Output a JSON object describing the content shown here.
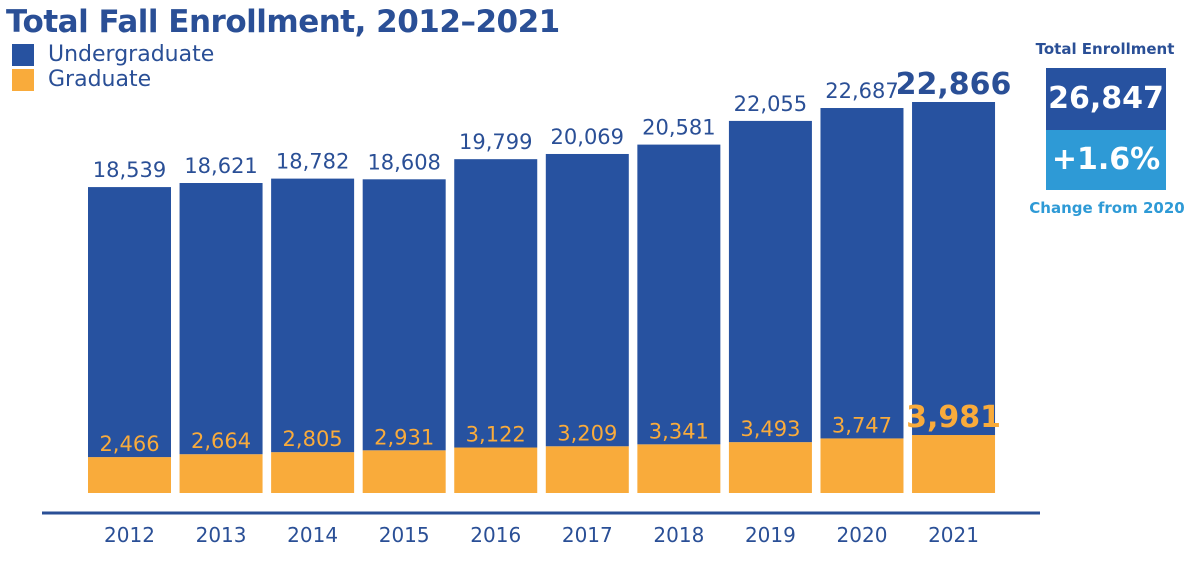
{
  "chart_data": {
    "type": "bar",
    "stacked": true,
    "title": "Total Fall Enrollment, 2012–2021",
    "categories": [
      "2012",
      "2013",
      "2014",
      "2015",
      "2016",
      "2017",
      "2018",
      "2019",
      "2020",
      "2021"
    ],
    "series": [
      {
        "name": "Undergraduate",
        "color": "#2752a0",
        "values": [
          18539,
          18621,
          18782,
          18608,
          19799,
          20069,
          20581,
          22055,
          22687,
          22866
        ]
      },
      {
        "name": "Graduate",
        "color": "#f9ab3b",
        "values": [
          2466,
          2664,
          2805,
          2931,
          3122,
          3209,
          3341,
          3493,
          3747,
          3981
        ]
      }
    ],
    "value_labels": {
      "Undergraduate": [
        "18,539",
        "18,621",
        "18,782",
        "18,608",
        "19,799",
        "20,069",
        "20,581",
        "22,055",
        "22,687",
        "22,866"
      ],
      "Graduate": [
        "2,466",
        "2,664",
        "2,805",
        "2,931",
        "3,122",
        "3,209",
        "3,341",
        "3,493",
        "3,747",
        "3,981"
      ]
    },
    "xlabel": "",
    "ylabel": "",
    "ylim": [
      0,
      27000
    ],
    "grid": false,
    "legend_position": "top-left",
    "highlight_category": "2021"
  },
  "summary": {
    "title": "Total Enrollment",
    "total": "26,847",
    "change": "+1.6%",
    "change_label": "Change from 2020",
    "colors": {
      "total_box": "#2752a0",
      "change_box": "#2e9ad6"
    }
  }
}
